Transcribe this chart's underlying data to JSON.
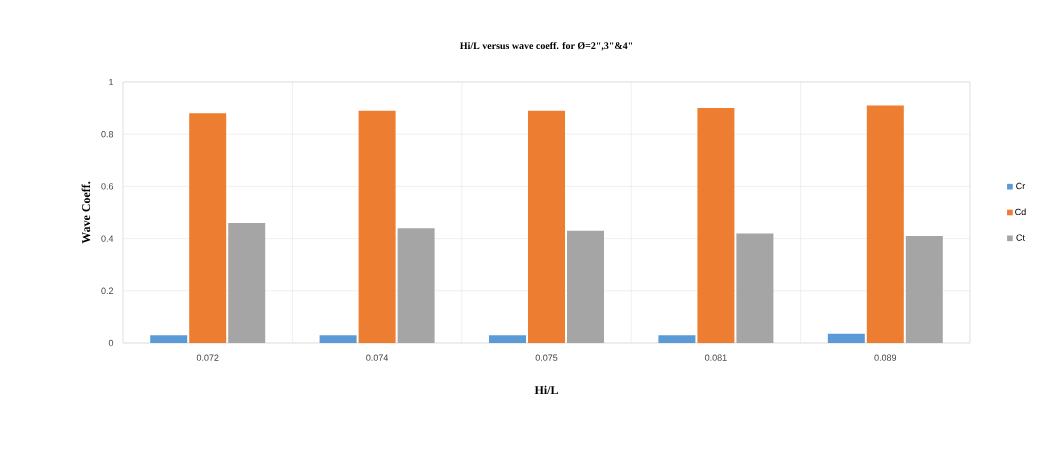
{
  "chart_data": {
    "type": "bar",
    "title": "Hi/L versus wave coeff. for Ø=2\",3\"&4\"",
    "xlabel": "Hi/L",
    "ylabel": "Wave Coeff.",
    "categories": [
      "0.072",
      "0.074",
      "0.075",
      "0.081",
      "0.089"
    ],
    "series": [
      {
        "name": "Cr",
        "color": "#5b9bd5",
        "values": [
          0.03,
          0.03,
          0.03,
          0.03,
          0.035
        ]
      },
      {
        "name": "Cd",
        "color": "#ed7d31",
        "values": [
          0.88,
          0.89,
          0.89,
          0.9,
          0.91
        ]
      },
      {
        "name": "Ct",
        "color": "#a5a5a5",
        "values": [
          0.46,
          0.44,
          0.43,
          0.42,
          0.41
        ]
      }
    ],
    "ylim": [
      0,
      1
    ],
    "yticks": [
      0,
      0.2,
      0.4,
      0.6,
      0.8,
      1
    ],
    "grid": true,
    "legend": "right"
  }
}
